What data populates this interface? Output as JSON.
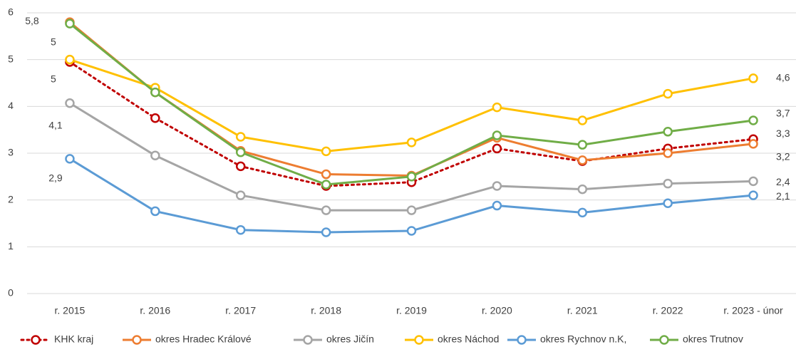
{
  "chart_data": {
    "type": "line",
    "categories": [
      "r. 2015",
      "r. 2016",
      "r. 2017",
      "r. 2018",
      "r. 2019",
      "r. 2020",
      "r. 2021",
      "r. 2022",
      "r. 2023 - únor"
    ],
    "ylim": [
      0,
      6
    ],
    "yticks": [
      0,
      1,
      2,
      3,
      4,
      5,
      6
    ],
    "grid": true,
    "legend": "bottom",
    "series": [
      {
        "name": "KHK kraj",
        "color": "#c00000",
        "dotted": true,
        "values": [
          4.95,
          3.75,
          2.72,
          2.3,
          2.38,
          3.1,
          2.83,
          3.1,
          3.3
        ],
        "value_labels": [
          "5",
          null,
          null,
          null,
          null,
          null,
          null,
          null,
          "3,3"
        ]
      },
      {
        "name": "okres Hradec Králové",
        "color": "#ed7d31",
        "values": [
          5.8,
          4.3,
          3.05,
          2.55,
          2.52,
          3.33,
          2.85,
          3.0,
          3.2
        ],
        "value_labels": [
          "5,8",
          null,
          null,
          null,
          null,
          null,
          null,
          null,
          "3,2"
        ]
      },
      {
        "name": "okres Jičín",
        "color": "#a5a5a5",
        "values": [
          4.07,
          2.95,
          2.1,
          1.78,
          1.78,
          2.3,
          2.23,
          2.35,
          2.4
        ],
        "value_labels": [
          "4,1",
          null,
          null,
          null,
          null,
          null,
          null,
          null,
          "2,4"
        ]
      },
      {
        "name": "okres Náchod",
        "color": "#ffc000",
        "values": [
          5.0,
          4.4,
          3.35,
          3.04,
          3.23,
          3.98,
          3.7,
          4.27,
          4.6
        ],
        "value_labels": [
          "5",
          null,
          null,
          null,
          null,
          null,
          null,
          null,
          "4,6"
        ]
      },
      {
        "name": "okres Rychnov n.K,",
        "color": "#5b9bd5",
        "values": [
          2.88,
          1.76,
          1.36,
          1.31,
          1.34,
          1.88,
          1.73,
          1.93,
          2.1
        ],
        "value_labels": [
          "2,9",
          null,
          null,
          null,
          null,
          null,
          null,
          null,
          "2,1"
        ]
      },
      {
        "name": "okres Trutnov",
        "color": "#70ad47",
        "values": [
          5.77,
          4.3,
          3.02,
          2.33,
          2.5,
          3.38,
          3.18,
          3.46,
          3.7
        ],
        "value_labels": [
          null,
          null,
          null,
          null,
          null,
          null,
          null,
          null,
          "3,7"
        ]
      }
    ]
  }
}
